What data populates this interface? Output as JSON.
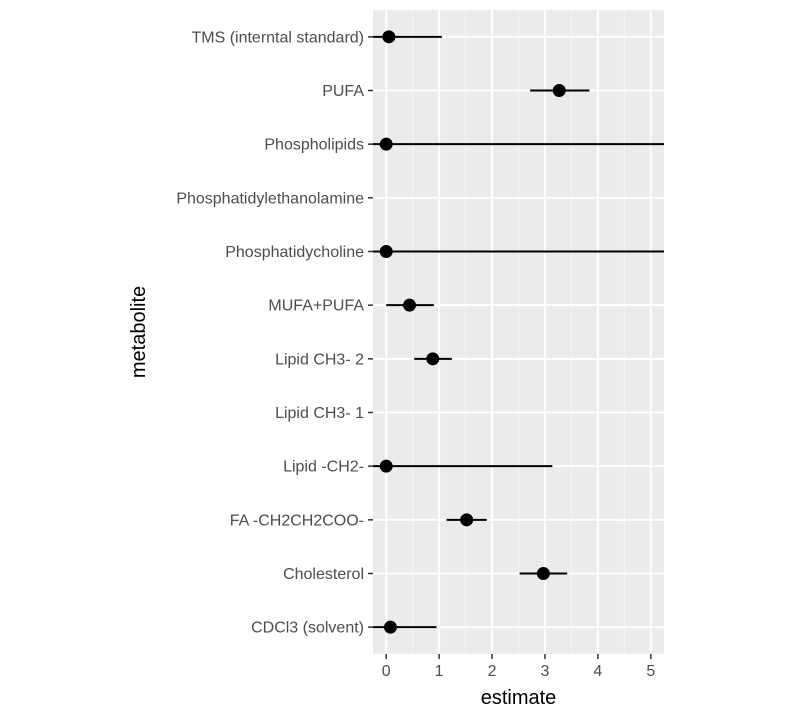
{
  "chart_data": {
    "type": "scatter",
    "subtype": "point-with-horizontal-errorbars",
    "xlabel": "estimate",
    "ylabel": "metabolite",
    "xlim": [
      -0.25,
      5.25
    ],
    "x_ticks": [
      0,
      1,
      2,
      3,
      4,
      5
    ],
    "grid": true,
    "legend": "none",
    "categories": [
      "TMS (interntal standard)",
      "PUFA",
      "Phospholipids",
      "Phosphatidylethanolamine",
      "Phosphatidycholine",
      "MUFA+PUFA",
      "Lipid CH3- 2",
      "Lipid CH3- 1",
      "Lipid -CH2-",
      "FA -CH2CH2COO-",
      "Cholesterol",
      "CDCl3 (solvent)"
    ],
    "points": [
      {
        "category": "TMS (interntal standard)",
        "estimate": 0.05,
        "lower": -0.35,
        "upper": 1.05
      },
      {
        "category": "PUFA",
        "estimate": 3.27,
        "lower": 2.72,
        "upper": 3.84
      },
      {
        "category": "Phospholipids",
        "estimate": 0.0,
        "lower": -0.35,
        "upper": 5.25
      },
      {
        "category": "Phosphatidylethanolamine",
        "estimate": null,
        "lower": null,
        "upper": null
      },
      {
        "category": "Phosphatidycholine",
        "estimate": 0.0,
        "lower": -0.35,
        "upper": 5.25
      },
      {
        "category": "MUFA+PUFA",
        "estimate": 0.44,
        "lower": 0.0,
        "upper": 0.9
      },
      {
        "category": "Lipid CH3- 2",
        "estimate": 0.88,
        "lower": 0.53,
        "upper": 1.24
      },
      {
        "category": "Lipid CH3- 1",
        "estimate": null,
        "lower": null,
        "upper": null
      },
      {
        "category": "Lipid -CH2-",
        "estimate": 0.0,
        "lower": -0.35,
        "upper": 3.14
      },
      {
        "category": "FA -CH2CH2COO-",
        "estimate": 1.52,
        "lower": 1.14,
        "upper": 1.9
      },
      {
        "category": "Cholesterol",
        "estimate": 2.97,
        "lower": 2.52,
        "upper": 3.42
      },
      {
        "category": "CDCl3 (solvent)",
        "estimate": 0.08,
        "lower": -0.35,
        "upper": 0.95
      }
    ],
    "colors": {
      "panel_background": "#ebebeb",
      "grid": "#ffffff",
      "point": "#000000",
      "tick_label": "#4d4d4d"
    }
  }
}
